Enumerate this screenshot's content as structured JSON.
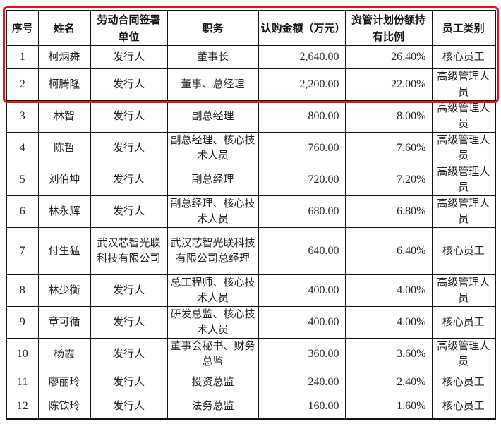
{
  "headers": [
    "序号",
    "姓名",
    "劳动合同签署单位",
    "职务",
    "认购金额（万元）",
    "资管计划份额持有比例",
    "员工类别"
  ],
  "rows": [
    [
      "1",
      "柯炳粦",
      "发行人",
      "董事长",
      "2,640.00",
      "26.40%",
      "核心员工"
    ],
    [
      "2",
      "柯腾隆",
      "发行人",
      "董事、总经理",
      "2,200.00",
      "22.00%",
      "高级管理人员"
    ],
    [
      "3",
      "林智",
      "发行人",
      "副总经理",
      "800.00",
      "8.00%",
      "高级管理人员"
    ],
    [
      "4",
      "陈哲",
      "发行人",
      "副总经理、核心技术人员",
      "760.00",
      "7.60%",
      "高级管理人员"
    ],
    [
      "5",
      "刘伯坤",
      "发行人",
      "副总经理",
      "720.00",
      "7.20%",
      "高级管理人员"
    ],
    [
      "6",
      "林永辉",
      "发行人",
      "副总经理、核心技术人员",
      "680.00",
      "6.80%",
      "高级管理人员"
    ],
    [
      "7",
      "付生猛",
      "武汉芯智光联科技有限公司",
      "武汉芯智光联科技有限公司总经理",
      "640.00",
      "6.40%",
      "核心员工"
    ],
    [
      "8",
      "林少衡",
      "发行人",
      "总工程师、核心技术人员",
      "400.00",
      "4.00%",
      "高级管理人员"
    ],
    [
      "9",
      "章可循",
      "发行人",
      "研发总监、核心技术人员",
      "400.00",
      "4.00%",
      "核心员工"
    ],
    [
      "10",
      "杨霞",
      "发行人",
      "董事会秘书、财务总监",
      "360.00",
      "3.60%",
      "高级管理人员"
    ],
    [
      "11",
      "廖丽玲",
      "发行人",
      "投资总监",
      "240.00",
      "2.40%",
      "核心员工"
    ],
    [
      "12",
      "陈钦玲",
      "发行人",
      "法务总监",
      "160.00",
      "1.60%",
      "核心员工"
    ]
  ],
  "highlight_color": "#e8101a"
}
